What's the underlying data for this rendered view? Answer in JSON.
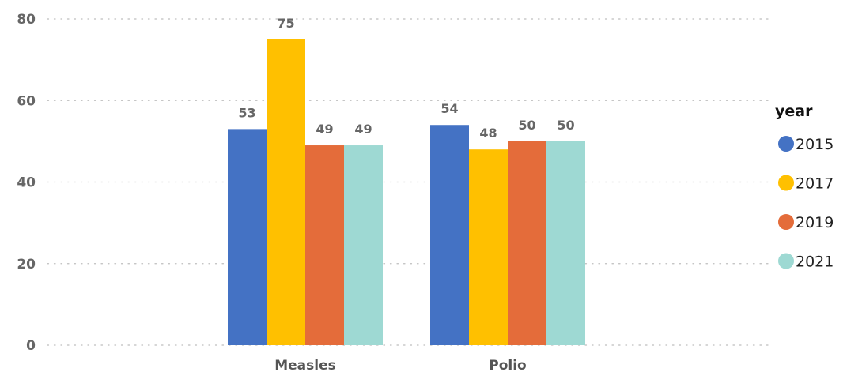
{
  "chart_data": {
    "type": "bar",
    "categories": [
      "Measles",
      "Polio"
    ],
    "series": [
      {
        "name": "2015",
        "values": [
          53,
          54
        ],
        "color": "#4472C4"
      },
      {
        "name": "2017",
        "values": [
          75,
          48
        ],
        "color": "#FFC000"
      },
      {
        "name": "2019",
        "values": [
          49,
          50
        ],
        "color": "#E46C3A"
      },
      {
        "name": "2021",
        "values": [
          49,
          50
        ],
        "color": "#9ED9D3"
      }
    ],
    "title": "",
    "xlabel": "",
    "ylabel": "",
    "ylim": [
      0,
      80
    ],
    "yticks": [
      "0",
      "20",
      "40",
      "60",
      "80"
    ],
    "grid": "dotted-horizontal",
    "legend": {
      "title": "year",
      "position": "right"
    },
    "data_labels": true
  }
}
